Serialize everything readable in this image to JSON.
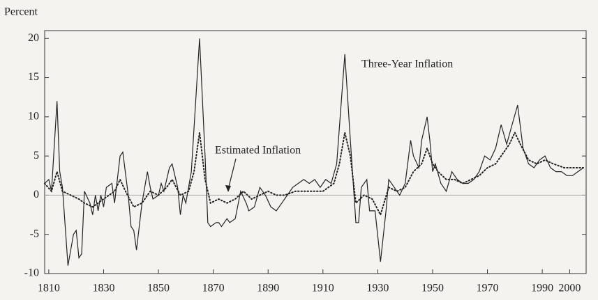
{
  "chart_data": {
    "type": "line",
    "y_label": "Percent",
    "annotations": [
      "Three-Year Inflation",
      "Estimated Inflation"
    ],
    "xlim": [
      1808.5,
      2006
    ],
    "ylim": [
      -10,
      21
    ],
    "xticks": [
      1810,
      1830,
      1850,
      1870,
      1890,
      1910,
      1930,
      1950,
      1970,
      1990,
      2000
    ],
    "yticks": [
      -10,
      -5,
      0,
      5,
      10,
      15,
      20
    ],
    "grid": false,
    "series": [
      {
        "name": "Three-Year Inflation",
        "color": "#222222",
        "style": "solid",
        "x": [
          1808.5,
          1810,
          1811,
          1813,
          1814,
          1815,
          1817,
          1819,
          1820,
          1821,
          1822,
          1823,
          1825,
          1826,
          1827,
          1828,
          1829,
          1830,
          1831,
          1833,
          1834,
          1836,
          1837,
          1839,
          1840,
          1841,
          1842,
          1844,
          1846,
          1847,
          1848,
          1850,
          1851,
          1852,
          1854,
          1855,
          1857,
          1858,
          1859,
          1860,
          1862,
          1865,
          1867,
          1868,
          1869,
          1871,
          1872,
          1873,
          1875,
          1876,
          1878,
          1880,
          1882,
          1883,
          1885,
          1887,
          1889,
          1891,
          1893,
          1895,
          1897,
          1899,
          1901,
          1903,
          1905,
          1907,
          1909,
          1911,
          1913,
          1915,
          1918,
          1920,
          1922,
          1923,
          1924,
          1926,
          1927,
          1929,
          1931,
          1933,
          1934,
          1936,
          1938,
          1940,
          1942,
          1943,
          1945,
          1946,
          1948,
          1949,
          1950,
          1951,
          1953,
          1955,
          1957,
          1959,
          1961,
          1963,
          1965,
          1967,
          1969,
          1971,
          1973,
          1975,
          1977,
          1979,
          1981,
          1983,
          1985,
          1987,
          1989,
          1991,
          1993,
          1995,
          1997,
          1999,
          2001,
          2003,
          2005
        ],
        "values": [
          1.5,
          2,
          0.5,
          12,
          3,
          1,
          -9,
          -5,
          -4.5,
          -8,
          -7.5,
          0.5,
          -1,
          -2.5,
          0,
          -2,
          0,
          -1.5,
          1,
          1.5,
          -1,
          5,
          5.5,
          0,
          -4,
          -4.5,
          -7,
          -1,
          3,
          1,
          -0.5,
          0,
          1.5,
          0.5,
          3.5,
          4,
          1,
          -2.5,
          0,
          -1,
          3,
          20,
          5,
          -3.5,
          -4,
          -3.5,
          -3.5,
          -4,
          -3,
          -3.5,
          -3,
          0.5,
          -1,
          -2,
          -1.5,
          1,
          0,
          -1.5,
          -2,
          -1,
          0,
          1,
          1.5,
          2,
          1.5,
          2,
          1,
          2,
          1.5,
          4,
          18,
          7,
          -3.5,
          -3.5,
          1,
          2,
          -2,
          -2,
          -8.5,
          -2,
          2,
          1,
          0,
          1.5,
          7,
          5,
          3.5,
          7,
          10,
          7,
          3,
          4,
          1.5,
          0.5,
          3,
          2,
          1.5,
          1.5,
          2,
          3,
          5,
          4.5,
          6,
          9,
          6.5,
          9,
          11.5,
          6,
          4,
          3.5,
          4.5,
          5,
          3.5,
          3,
          3,
          2.5,
          2.5,
          3,
          3.5
        ]
      },
      {
        "name": "Estimated Inflation",
        "color": "#222222",
        "style": "dotted",
        "x": [
          1808.5,
          1811,
          1813,
          1815,
          1818,
          1821,
          1823,
          1826,
          1830,
          1834,
          1836,
          1838,
          1841,
          1844,
          1847,
          1850,
          1853,
          1855,
          1858,
          1861,
          1863,
          1865,
          1867,
          1869,
          1872,
          1875,
          1878,
          1881,
          1884,
          1887,
          1890,
          1893,
          1896,
          1900,
          1905,
          1910,
          1914,
          1916,
          1918,
          1920,
          1922,
          1925,
          1928,
          1931,
          1934,
          1937,
          1940,
          1943,
          1946,
          1948,
          1950,
          1952,
          1955,
          1958,
          1961,
          1964,
          1967,
          1970,
          1973,
          1976,
          1978,
          1980,
          1982,
          1985,
          1988,
          1991,
          1994,
          1998,
          2002,
          2005
        ],
        "values": [
          1.5,
          0.5,
          3,
          0.5,
          0,
          -0.5,
          -1,
          -1.5,
          -0.5,
          0.5,
          2,
          0.5,
          -1.5,
          -1,
          0.5,
          0,
          1,
          2,
          0,
          0.5,
          3,
          8,
          2,
          -1,
          -0.5,
          -1,
          -0.5,
          0.5,
          -0.5,
          0,
          0.5,
          0,
          0,
          0.5,
          0.5,
          0.5,
          1.5,
          4,
          8,
          5,
          -1,
          0,
          -0.5,
          -2.5,
          1,
          0.5,
          1,
          3,
          4,
          6,
          4,
          3,
          2,
          2,
          1.5,
          2,
          2.5,
          3.5,
          4,
          5.5,
          6.5,
          8,
          6.5,
          4.5,
          4,
          4.5,
          4,
          3.5,
          3.5,
          3.5
        ]
      }
    ]
  }
}
